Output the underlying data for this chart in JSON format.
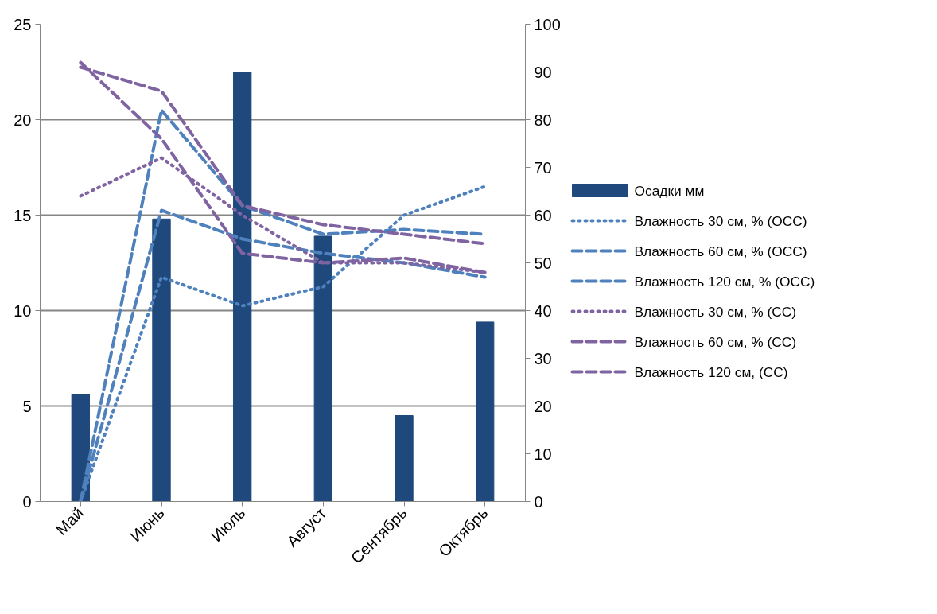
{
  "chart_data": {
    "type": "bar",
    "categories": [
      "Май",
      "Июнь",
      "Июль",
      "Август",
      "Сентябрь",
      "Октябрь"
    ],
    "series": [
      {
        "name": "Осадки мм",
        "type": "bar",
        "color": "#1f497d",
        "values": [
          5.6,
          14.8,
          22.5,
          13.9,
          4.5,
          9.4
        ]
      },
      {
        "name": "Влажность 30 см, % (ОСС)",
        "type": "line",
        "axis": "y2",
        "line_style": "dotted",
        "color": "#4f81bd",
        "values": [
          0,
          47,
          41,
          45,
          60,
          66
        ]
      },
      {
        "name": "Влажность 60 см, % (ОСС)",
        "type": "line",
        "axis": "y2",
        "line_style": "dashed",
        "color": "#4f81bd",
        "values": [
          0,
          61,
          55,
          52,
          50,
          47
        ]
      },
      {
        "name": "Влажность 120 см, % (ОСС)",
        "type": "line",
        "axis": "y2",
        "line_style": "dashed",
        "color": "#4f81bd",
        "values": [
          0,
          82,
          62,
          56,
          57,
          56
        ]
      },
      {
        "name": "Влажность 30 см, % (СС)",
        "type": "line",
        "axis": "y2",
        "line_style": "dotted",
        "color": "#8064a2",
        "values": [
          64,
          72,
          60,
          50,
          50,
          48
        ]
      },
      {
        "name": "Влажность 60 см, % (СС)",
        "type": "line",
        "axis": "y2",
        "line_style": "dashed",
        "color": "#8064a2",
        "values": [
          91,
          86,
          62,
          58,
          56,
          54
        ]
      },
      {
        "name": "Влажность 120 см, (СС)",
        "type": "line",
        "axis": "y2",
        "line_style": "dashed",
        "color": "#8064a2",
        "values": [
          92,
          76,
          52,
          50,
          51,
          48
        ]
      }
    ],
    "ylim": [
      0,
      25
    ],
    "yticks": [
      0,
      5,
      10,
      15,
      20,
      25
    ],
    "y2lim": [
      0,
      100
    ],
    "y2ticks": [
      0,
      10,
      20,
      30,
      40,
      50,
      60,
      70,
      80,
      90,
      100
    ],
    "grid": "y",
    "legend": "right",
    "marker": "none"
  }
}
